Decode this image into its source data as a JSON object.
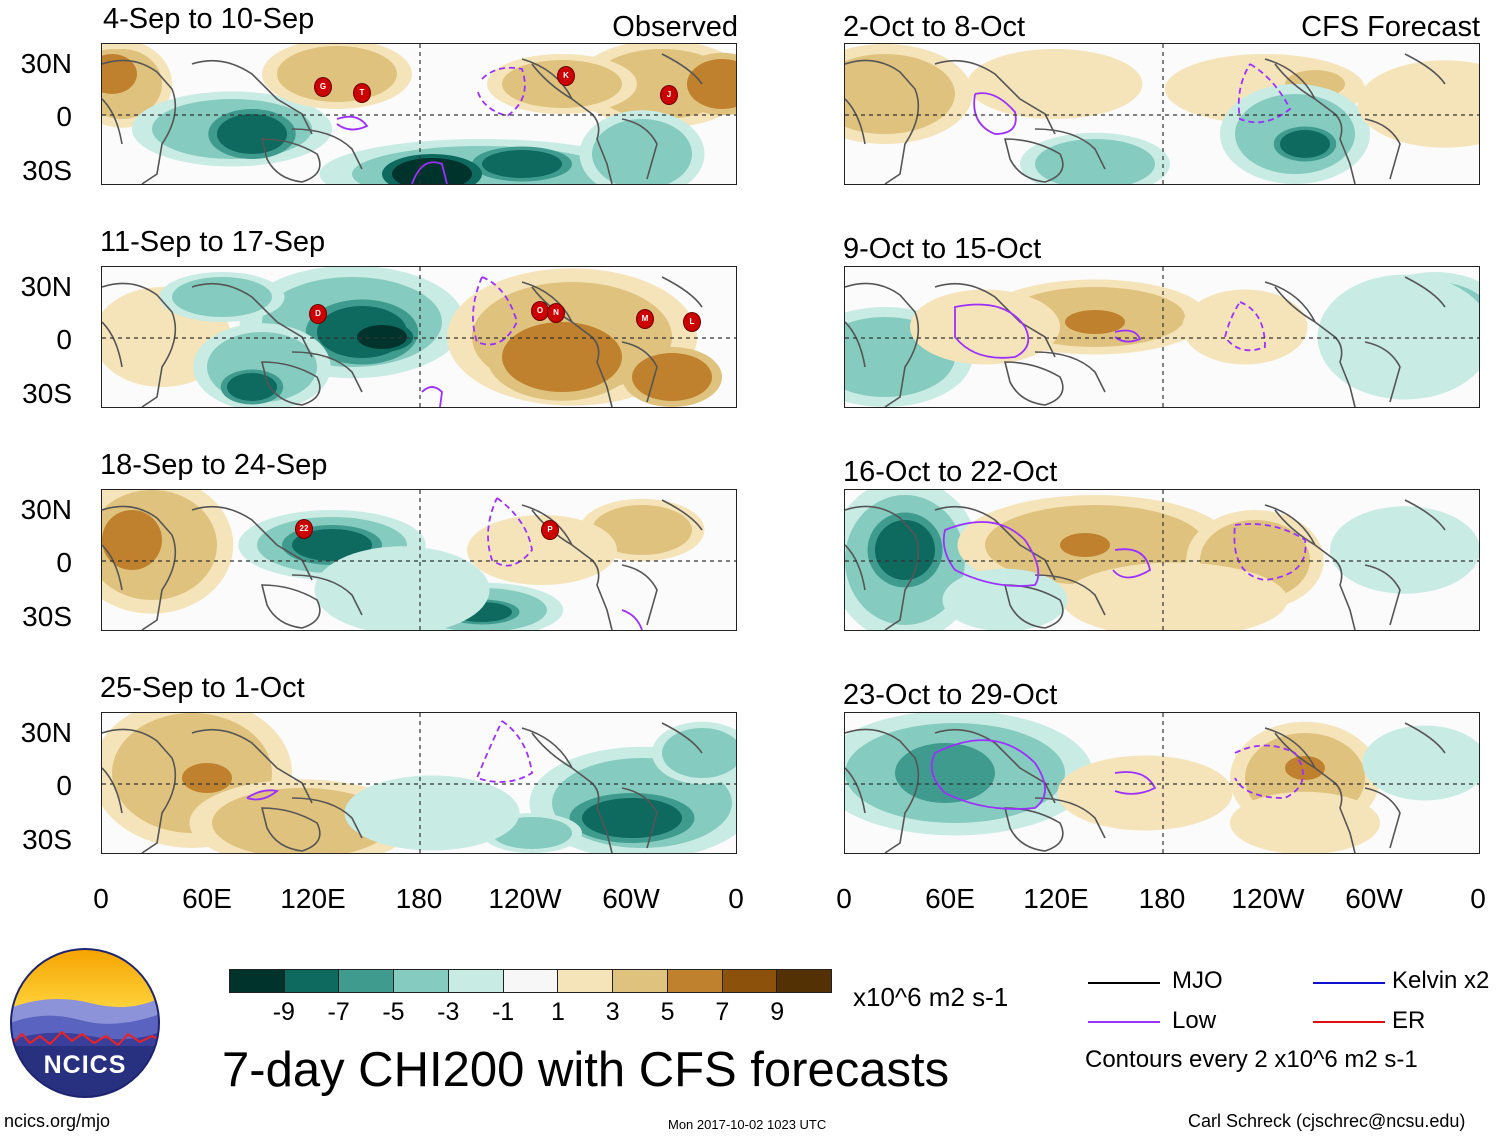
{
  "header": {
    "left": "Observed",
    "right": "CFS Forecast"
  },
  "left_panels": [
    {
      "title": "4-Sep to 10-Sep"
    },
    {
      "title": "11-Sep to 17-Sep"
    },
    {
      "title": "18-Sep to 24-Sep"
    },
    {
      "title": "25-Sep to 1-Oct"
    }
  ],
  "right_panels": [
    {
      "title": "2-Oct to 8-Oct"
    },
    {
      "title": "9-Oct to 15-Oct"
    },
    {
      "title": "16-Oct to 22-Oct"
    },
    {
      "title": "23-Oct to 29-Oct"
    }
  ],
  "y_labels": [
    "30N",
    "0",
    "30S"
  ],
  "x_labels": [
    "0",
    "60E",
    "120E",
    "180",
    "120W",
    "60W",
    "0"
  ],
  "colorbar": {
    "colors": [
      "#01332d",
      "#0e6a5f",
      "#3f9b8e",
      "#86cbbf",
      "#c8ebe4",
      "#f7f7f7",
      "#f5e4b9",
      "#dfc27d",
      "#bf812d",
      "#8c510a",
      "#543005"
    ],
    "ticks": [
      "-9",
      "-7",
      "-5",
      "-3",
      "-1",
      "1",
      "3",
      "5",
      "7",
      "9"
    ],
    "units": "x10^6 m2 s-1"
  },
  "legend": {
    "mjo": "MJO",
    "low": "Low",
    "kelvin": "Kelvin x2",
    "er": "ER",
    "mjo_color": "#000000",
    "low_color": "#9b30ff",
    "kelvin_color": "#1010d0",
    "er_color": "#e01010",
    "contours": "Contours every 2 x10^6 m2 s-1"
  },
  "title": "7-day CHI200 with CFS forecasts",
  "logo_text": "NCICS",
  "footer": {
    "url": "ncics.org/mjo",
    "timestamp": "Mon 2017-10-02 1023 UTC",
    "credit": "Carl Schreck (cjschrec@ncsu.edu)"
  },
  "storms": [
    {
      "panel": 0,
      "labels": [
        "G",
        "T",
        "K",
        "J"
      ]
    },
    {
      "panel": 1,
      "labels": [
        "D",
        "O",
        "N",
        "M",
        "L"
      ]
    },
    {
      "panel": 2,
      "labels": [
        "22",
        "P"
      ]
    }
  ],
  "colors": {
    "contour_low": "#9b30ff",
    "storm": "#cc0000",
    "coast": "#555555"
  }
}
